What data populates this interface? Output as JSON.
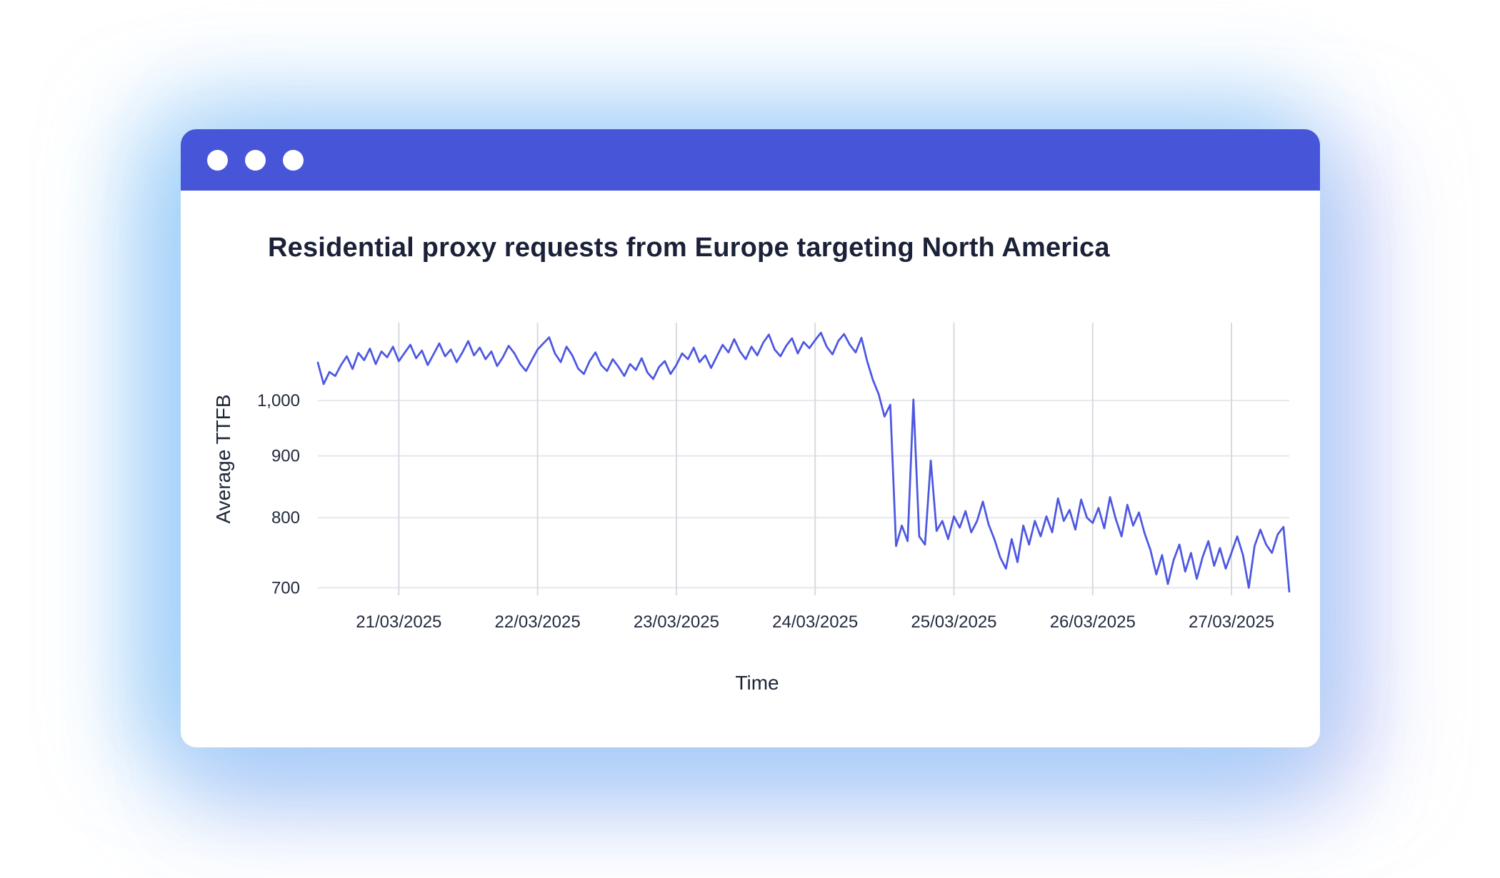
{
  "window": {
    "control_dots": 3,
    "control_dot_icon": "window-control-dot"
  },
  "colors": {
    "titlebar": "#4756d8",
    "window_bg": "#ffffff",
    "line": "#4d57e2",
    "title_text": "#1a2138",
    "axis_title_text": "#1d2536",
    "tick_text": "#232b3e",
    "grid_horizontal": "#e6e8ee",
    "grid_vertical": "#d7dae1",
    "glow_blue": "#bfe0fa",
    "glow_lavender": "#dcdff8"
  },
  "chart": {
    "title": "Residential proxy requests from Europe targeting North America"
  },
  "chart_data": {
    "type": "line",
    "title": "Residential proxy requests from Europe targeting North America",
    "xlabel": "Time",
    "ylabel": "Average TTFB",
    "legend": false,
    "grid": true,
    "y_scale": "log",
    "y_range": [
      690,
      1160
    ],
    "y_ticks": [
      700,
      800,
      900,
      1000
    ],
    "y_tick_labels": [
      "700",
      "800",
      "900",
      "1,000"
    ],
    "x_range_hours": [
      0,
      168
    ],
    "x_tick_hours": [
      14,
      38,
      62,
      86,
      110,
      134,
      158
    ],
    "x_tick_labels": [
      "21/03/2025",
      "22/03/2025",
      "23/03/2025",
      "24/03/2025",
      "25/03/2025",
      "26/03/2025",
      "27/03/2025"
    ],
    "series": [
      {
        "name": "Average TTFB",
        "x_start": "20/03/2025 10:00",
        "x_step_hours": 1,
        "values": [
          1075,
          1032,
          1056,
          1048,
          1070,
          1088,
          1062,
          1095,
          1080,
          1104,
          1072,
          1098,
          1086,
          1108,
          1078,
          1095,
          1112,
          1084,
          1100,
          1070,
          1092,
          1115,
          1088,
          1102,
          1076,
          1096,
          1120,
          1090,
          1106,
          1082,
          1098,
          1068,
          1086,
          1110,
          1094,
          1072,
          1058,
          1080,
          1102,
          1115,
          1128,
          1094,
          1076,
          1108,
          1090,
          1063,
          1052,
          1078,
          1096,
          1070,
          1058,
          1082,
          1066,
          1048,
          1072,
          1060,
          1084,
          1055,
          1042,
          1066,
          1078,
          1052,
          1070,
          1094,
          1082,
          1106,
          1076,
          1090,
          1064,
          1088,
          1112,
          1096,
          1124,
          1098,
          1082,
          1108,
          1090,
          1116,
          1134,
          1102,
          1088,
          1110,
          1126,
          1094,
          1118,
          1105,
          1122,
          1138,
          1108,
          1092,
          1120,
          1135,
          1112,
          1096,
          1127,
          1078,
          1040,
          1012,
          970,
          992,
          758,
          788,
          765,
          1002,
          772,
          760,
          892,
          780,
          795,
          768,
          802,
          785,
          810,
          778,
          795,
          825,
          790,
          768,
          742,
          726,
          768,
          735,
          788,
          760,
          795,
          772,
          802,
          778,
          830,
          795,
          812,
          782,
          828,
          800,
          792,
          815,
          784,
          832,
          798,
          772,
          820,
          788,
          808,
          776,
          752,
          718,
          745,
          705,
          738,
          760,
          722,
          748,
          712,
          742,
          765,
          730,
          755,
          726,
          748,
          772,
          745,
          700,
          758,
          782,
          760,
          748,
          775,
          786,
          695
        ]
      }
    ]
  }
}
